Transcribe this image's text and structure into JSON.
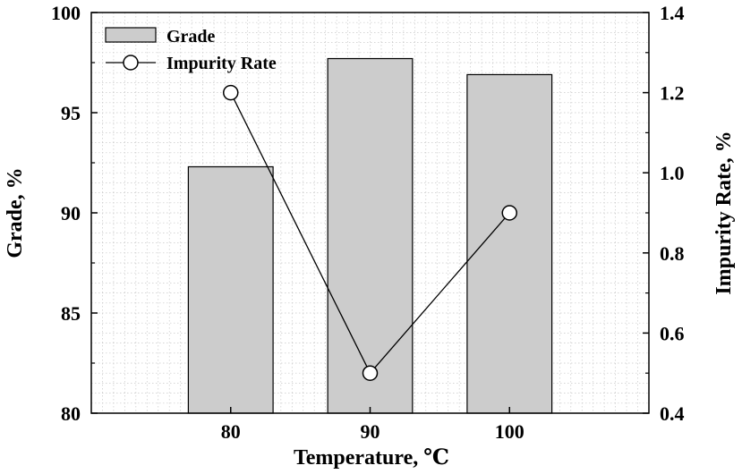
{
  "chart_data": {
    "type": "bar",
    "categories": [
      "80",
      "90",
      "100"
    ],
    "x": [
      80,
      90,
      100
    ],
    "xlabel": "Temperature, ℃",
    "ylabel": "Grade, %",
    "y2label": "Impurity Rate, %",
    "ylim": [
      80,
      100
    ],
    "y2lim": [
      0.4,
      1.4
    ],
    "yticks": [
      80,
      85,
      90,
      95,
      100
    ],
    "y2ticks": [
      "0.4",
      "0.6",
      "0.8",
      "1.0",
      "1.2",
      "1.4"
    ],
    "grid": true,
    "legend_position": "top-left",
    "series": [
      {
        "name": "Grade",
        "type": "bar",
        "axis": "left",
        "values": [
          92.3,
          97.7,
          96.9
        ],
        "color": "#cccccc"
      },
      {
        "name": "Impurity Rate",
        "type": "line",
        "axis": "right",
        "values": [
          1.2,
          0.5,
          0.9
        ],
        "color": "#000000",
        "marker": "open-circle"
      }
    ]
  }
}
